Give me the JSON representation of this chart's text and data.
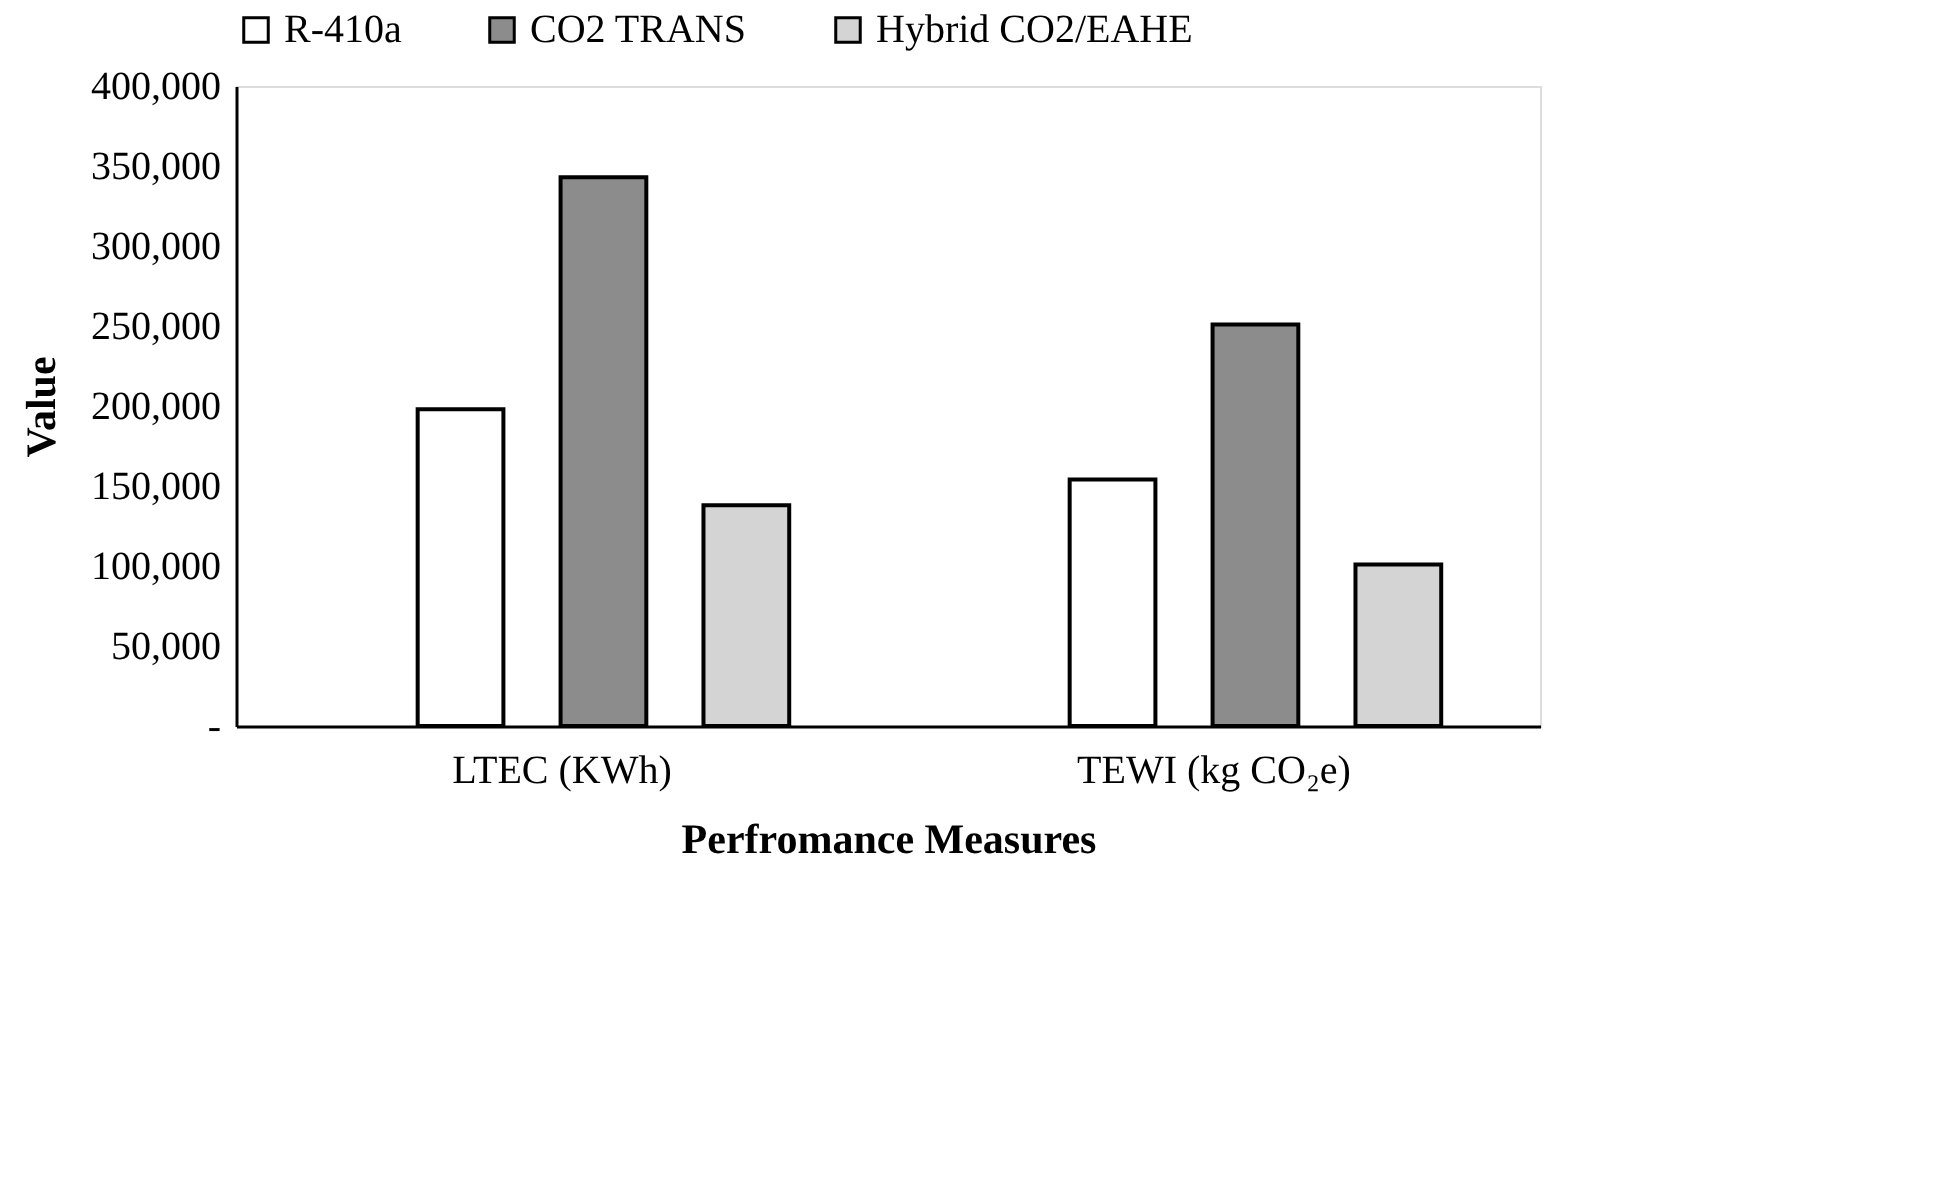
{
  "chart_data": {
    "type": "bar",
    "xlabel": "Perfromance Measures",
    "ylabel": "Value",
    "categories": [
      "LTEC (KWh)",
      "TEWI (kg CO₂e)"
    ],
    "series": [
      {
        "name": "R-410a",
        "color": "#ffffff",
        "values": [
          198000,
          154000
        ]
      },
      {
        "name": "CO2 TRANS",
        "color": "#8c8c8c",
        "values": [
          343000,
          251000
        ]
      },
      {
        "name": "Hybrid CO2/EAHE",
        "color": "#d4d4d4",
        "values": [
          138000,
          101000
        ]
      }
    ],
    "ylim": [
      0,
      400000
    ],
    "yticks": [
      {
        "value": 0,
        "label": "-"
      },
      {
        "value": 50000,
        "label": "50,000"
      },
      {
        "value": 100000,
        "label": "100,000"
      },
      {
        "value": 150000,
        "label": "150,000"
      },
      {
        "value": 200000,
        "label": "200,000"
      },
      {
        "value": 250000,
        "label": "250,000"
      },
      {
        "value": 300000,
        "label": "300,000"
      },
      {
        "value": 350000,
        "label": "350,000"
      },
      {
        "value": 400000,
        "label": "400,000"
      }
    ],
    "grid": false,
    "legend": "top"
  }
}
